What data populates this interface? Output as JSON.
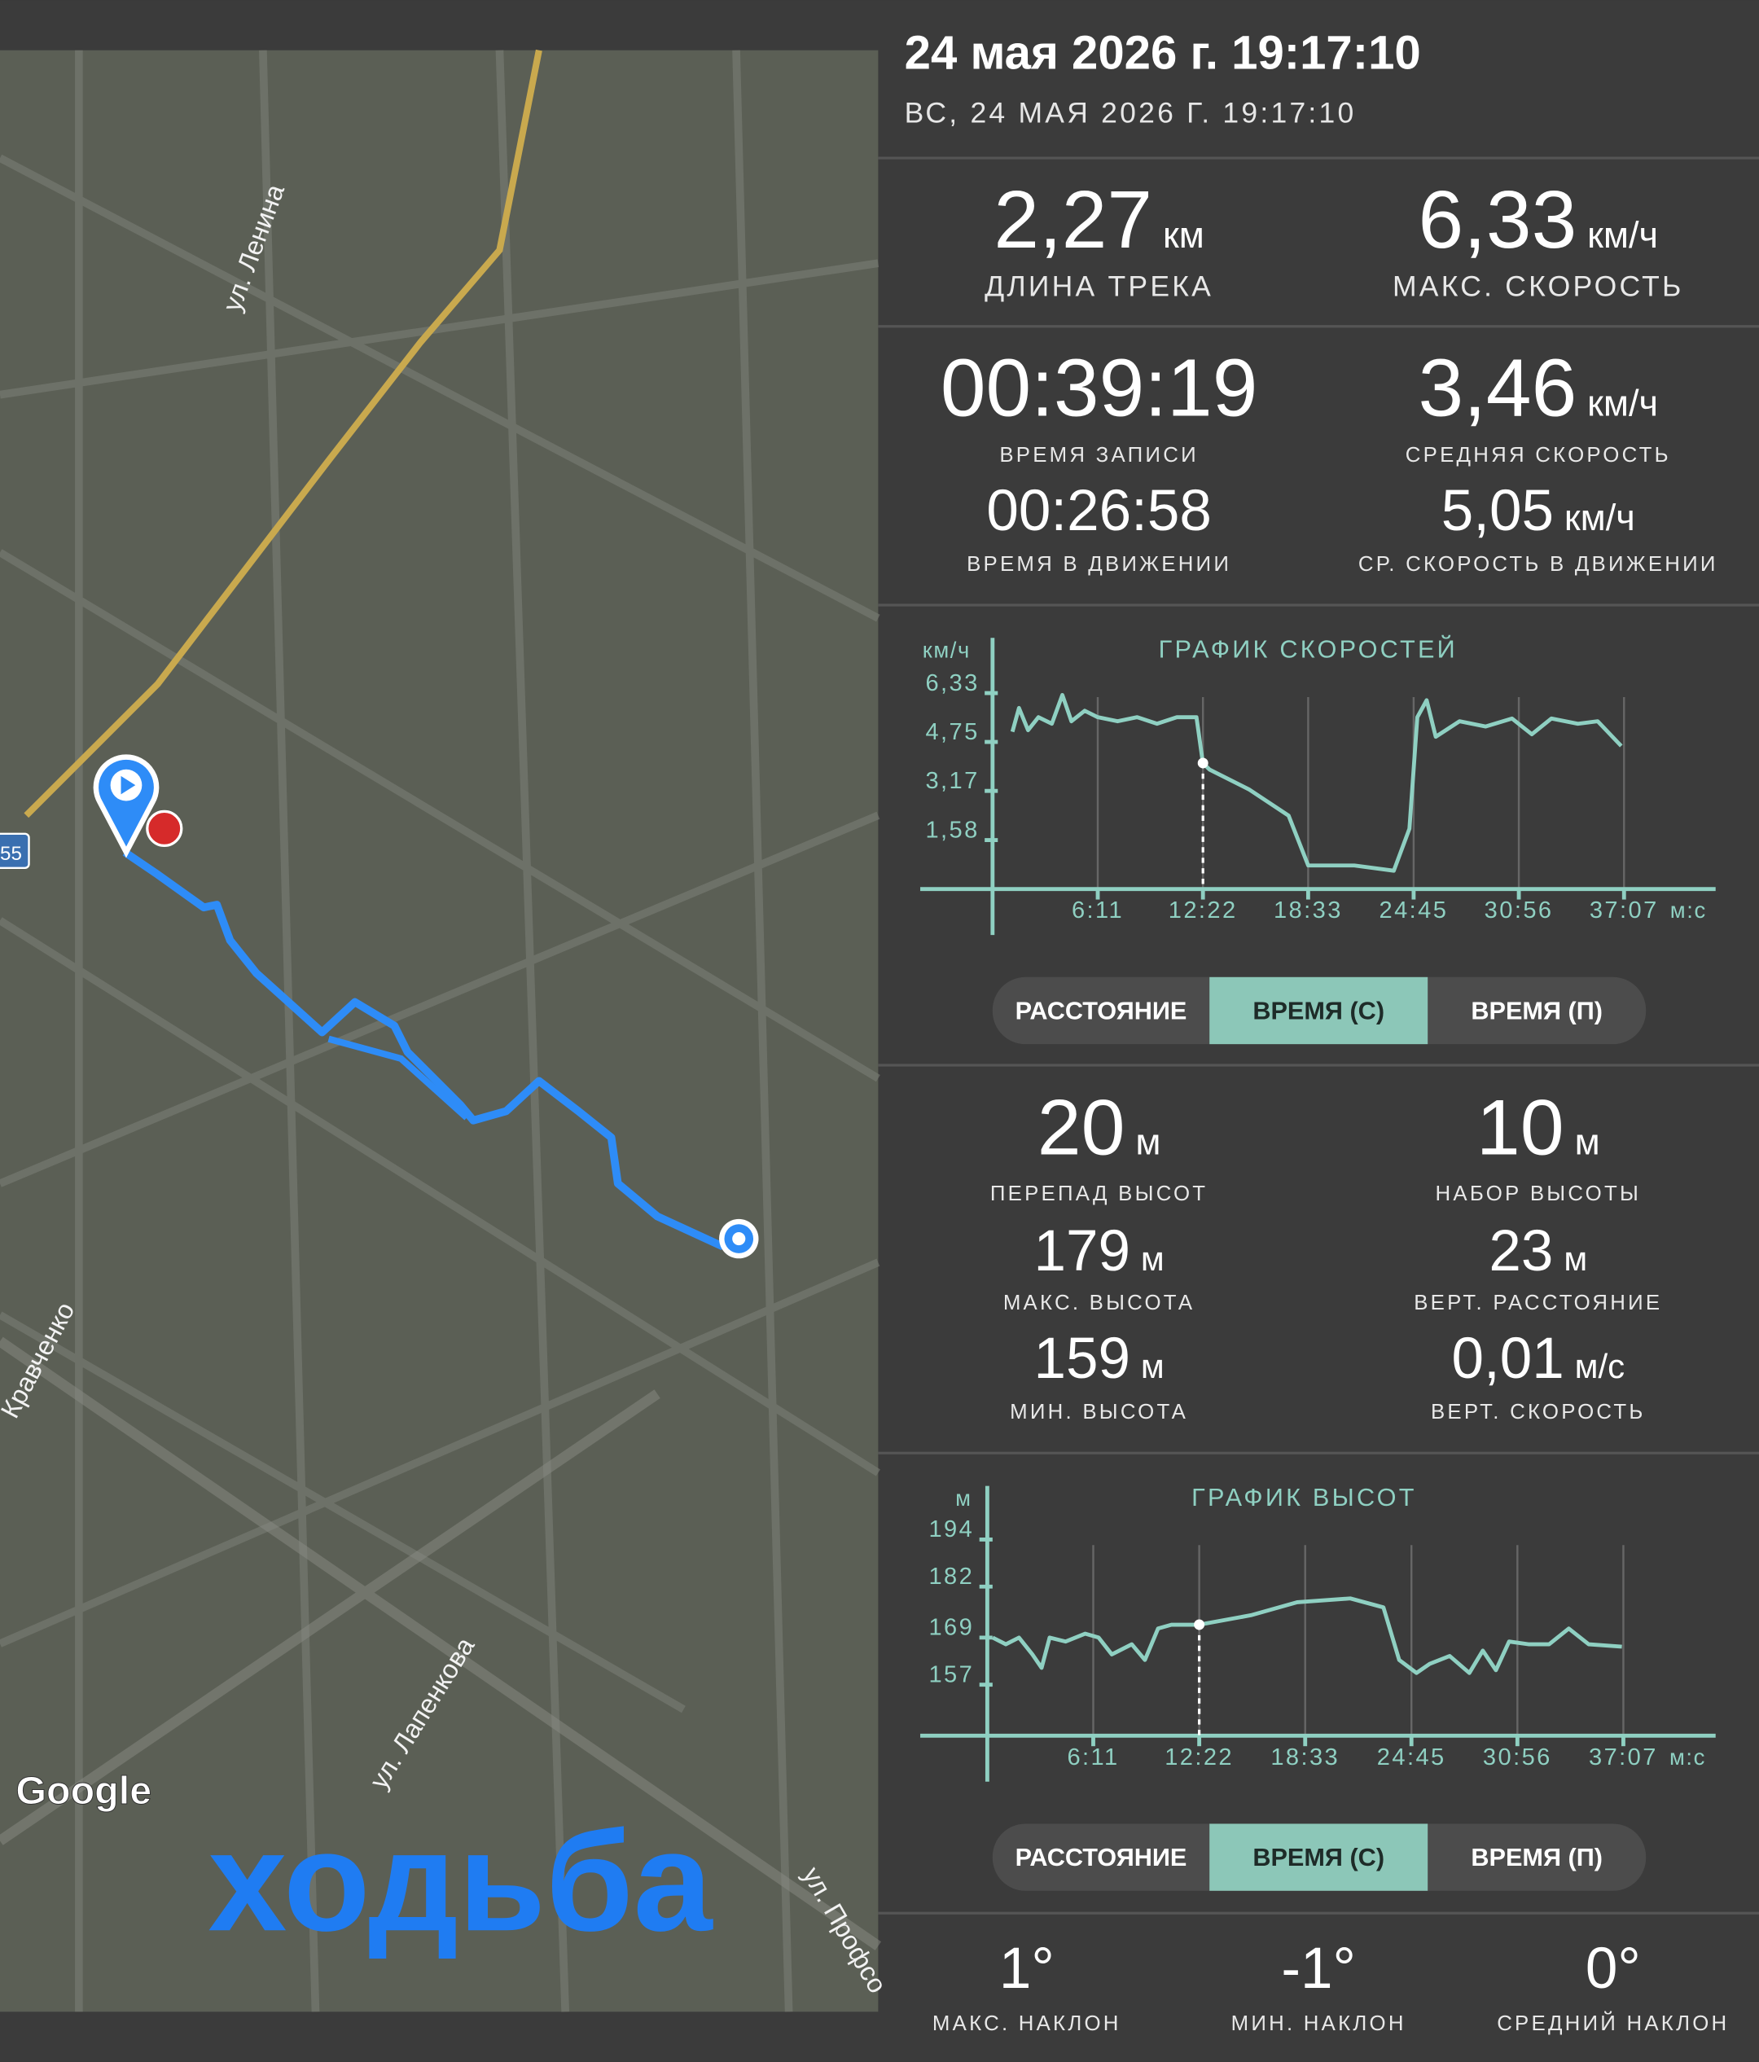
{
  "header": {
    "title": "24 мая 2026 г. 19:17:10",
    "subtitle": "ВС, 24 МАЯ 2026 Г. 19:17:10"
  },
  "map": {
    "street_labels": [
      "ул. Ленина",
      "Кравченко",
      "ул. Лапенкова",
      "ул. Профсо"
    ],
    "road_number": "55",
    "provider": "Google",
    "activity": "ходьба"
  },
  "track_stats": [
    {
      "value": "2,27",
      "unit": "км",
      "label": "ДЛИНА ТРЕКА"
    },
    {
      "value": "6,33",
      "unit": "км/ч",
      "label": "МАКС. СКОРОСТЬ"
    },
    {
      "value": "00:39:19",
      "label": "ВРЕМЯ ЗАПИСИ"
    },
    {
      "value": "3,46",
      "unit": "км/ч",
      "label": "СРЕДНЯЯ СКОРОСТЬ"
    },
    {
      "value": "00:26:58",
      "label": "ВРЕМЯ В ДВИЖЕНИИ"
    },
    {
      "value": "5,05",
      "unit": "км/ч",
      "label": "СР. СКОРОСТЬ В ДВИЖЕНИИ"
    }
  ],
  "speed_chart": {
    "type": "line",
    "title": "ГРАФИК СКОРОСТЕЙ",
    "y_label": "км/ч",
    "x_label": "м:с",
    "x": [
      70,
      93,
      125,
      162,
      209,
      246,
      278,
      325,
      371,
      441,
      510,
      580,
      650,
      719,
      742,
      765,
      904,
      1044,
      1113,
      1276,
      1415,
      1470,
      1498,
      1531,
      1563,
      1647,
      1739,
      1832,
      1902,
      1971,
      2064,
      2134,
      2217
    ],
    "values": [
      5.08,
      5.85,
      5.13,
      5.55,
      5.34,
      6.27,
      5.42,
      5.76,
      5.55,
      5.42,
      5.55,
      5.34,
      5.55,
      5.55,
      4.07,
      3.86,
      3.22,
      2.37,
      0.76,
      0.76,
      0.59,
      1.95,
      5.55,
      6.1,
      4.92,
      5.42,
      5.25,
      5.51,
      5.0,
      5.51,
      5.34,
      5.42,
      4.62
    ],
    "color": "#8fd0c2",
    "xlim": [
      0,
      2550
    ],
    "ylim": [
      0,
      7.9
    ],
    "xticks": [
      {
        "value": 371,
        "label": "6:11"
      },
      {
        "value": 742,
        "label": "12:22"
      },
      {
        "value": 1113,
        "label": "18:33"
      },
      {
        "value": 1485,
        "label": "24:45"
      },
      {
        "value": 1856,
        "label": "30:56"
      },
      {
        "value": 2227,
        "label": "37:07"
      }
    ],
    "yticks": [
      {
        "value": 1.58,
        "label": "1,58"
      },
      {
        "value": 3.17,
        "label": "3,17"
      },
      {
        "value": 4.75,
        "label": "4,75"
      },
      {
        "value": 6.33,
        "label": "6,33"
      }
    ],
    "grid": true,
    "segments": [
      "РАССТОЯНИЕ",
      "ВРЕМЯ (С)",
      "ВРЕМЯ (П)"
    ]
  },
  "elevation_stats": [
    {
      "value": "20",
      "unit": "м",
      "label": "ПЕРЕПАД ВЫСОТ"
    },
    {
      "value": "10",
      "unit": "м",
      "label": "НАБОР ВЫСОТЫ"
    },
    {
      "value": "179",
      "unit": "м",
      "label": "МАКС. ВЫСОТА"
    },
    {
      "value": "23",
      "unit": "м",
      "label": "ВЕРТ. РАССТОЯНИЕ"
    },
    {
      "value": "159",
      "unit": "м",
      "label": "МИН. ВЫСОТА"
    },
    {
      "value": "0,01",
      "unit": "м/с",
      "label": "ВЕРТ. СКОРОСТЬ"
    }
  ],
  "elevation_chart": {
    "type": "line",
    "title": "ГРАФИК ВЫСОТ",
    "y_label": "м",
    "x_label": "м:с",
    "x": [
      19,
      65,
      111,
      158,
      190,
      218,
      274,
      343,
      390,
      436,
      506,
      552,
      598,
      645,
      742,
      923,
      1085,
      1271,
      1387,
      1442,
      1503,
      1549,
      1619,
      1688,
      1735,
      1781,
      1827,
      1897,
      1967,
      2036,
      2106,
      2222
    ],
    "values": [
      169,
      167.3,
      169,
      164.7,
      161.3,
      169,
      168,
      170,
      169,
      164.7,
      167.3,
      163.3,
      171.3,
      172.3,
      172.3,
      174.7,
      178,
      179,
      176.7,
      163.3,
      160,
      162.3,
      164.3,
      160,
      165.7,
      160.7,
      168,
      167.3,
      167.3,
      171.3,
      167.3,
      166.7
    ],
    "color": "#8fd0c2",
    "xlim": [
      0,
      2550
    ],
    "ylim": [
      144,
      206
    ],
    "xticks": [
      {
        "value": 371,
        "label": "6:11"
      },
      {
        "value": 742,
        "label": "12:22"
      },
      {
        "value": 1113,
        "label": "18:33"
      },
      {
        "value": 1485,
        "label": "24:45"
      },
      {
        "value": 1856,
        "label": "30:56"
      },
      {
        "value": 2227,
        "label": "37:07"
      }
    ],
    "yticks": [
      157,
      169,
      182,
      194
    ],
    "grid": true,
    "segments": [
      "РАССТОЯНИЕ",
      "ВРЕМЯ (С)",
      "ВРЕМЯ (П)"
    ]
  },
  "slope_stats": [
    {
      "value": "1°",
      "label": "МАКС. НАКЛОН"
    },
    {
      "value": "-1°",
      "label": "МИН. НАКЛОН"
    },
    {
      "value": "0°",
      "label": "СРЕДНИЙ НАКЛОН"
    }
  ]
}
